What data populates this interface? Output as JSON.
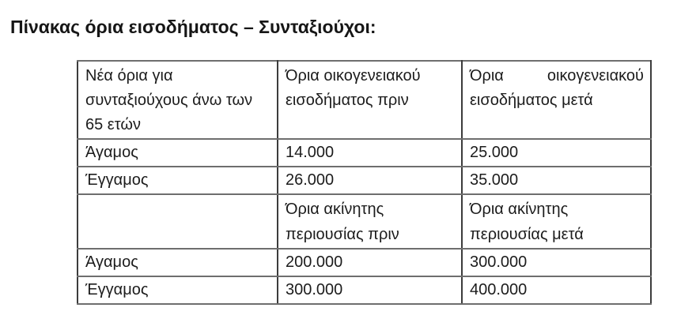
{
  "page": {
    "title": "Πίνακας όρια εισοδήματος – Συνταξιούχοι:"
  },
  "table": {
    "header": [
      "Νέα όρια για συνταξιούχους άνω των 65 ετών",
      "Όρια οικογενειακού εισοδήματος πριν",
      "Όρια οικογενειακού εισοδήματος μετά"
    ],
    "rows": [
      [
        "Άγαμος",
        "14.000",
        "25.000"
      ],
      [
        "Έγγαμος",
        "26.000",
        "35.000"
      ],
      [
        "",
        "Όρια ακίνητης περιουσίας πριν",
        "Όρια ακίνητης περιουσίας μετά"
      ],
      [
        "Άγαμος",
        "200.000",
        "300.000"
      ],
      [
        "Έγγαμος",
        "300.000",
        "400.000"
      ]
    ]
  },
  "colors": {
    "text": "#1c1c1c",
    "border_vertical": "#3c3c3c",
    "border_horizontal": "#6e6e6e",
    "background": "#ffffff"
  }
}
